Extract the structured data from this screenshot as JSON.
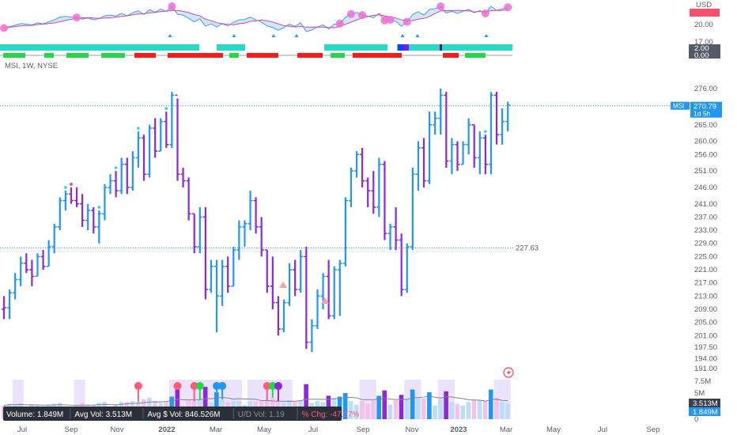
{
  "chart_data": {
    "type": "ohlc",
    "symbol_header": "MSI, 1W, NYSE",
    "symbol": "MSI",
    "interval": "1W",
    "exchange": "NYSE",
    "price_axis": {
      "ticks": [
        "276.00",
        "265.00",
        "260.00",
        "256.00",
        "251.00",
        "246.00",
        "241.00",
        "237.00",
        "233.00",
        "229.00",
        "225.00",
        "221.00",
        "217.00",
        "213.00",
        "209.00",
        "205.00",
        "201.00",
        "197.50",
        "194.00",
        "191.00"
      ],
      "ylim": [
        189,
        280
      ]
    },
    "current_price": {
      "symbol_label": "MSI",
      "value": 270.79,
      "label": "270.79",
      "countdown": "1d 5h"
    },
    "reference_line": {
      "value": 227.63,
      "label": "227.63"
    },
    "time_axis": [
      "Jul",
      "Sep",
      "Nov",
      "2022",
      "Mar",
      "May",
      "Jul",
      "Sep",
      "Nov",
      "2023",
      "Mar",
      "May",
      "Jul",
      "Sep"
    ],
    "bars": [
      {
        "o": 209,
        "h": 213,
        "l": 206,
        "c": 209.5,
        "d": "dn"
      },
      {
        "o": 209.5,
        "h": 215,
        "l": 206,
        "c": 214,
        "d": "up"
      },
      {
        "o": 214,
        "h": 220,
        "l": 212,
        "c": 218,
        "d": "up"
      },
      {
        "o": 218,
        "h": 225,
        "l": 216,
        "c": 223,
        "d": "up"
      },
      {
        "o": 223,
        "h": 226,
        "l": 220,
        "c": 221,
        "d": "dn"
      },
      {
        "o": 221,
        "h": 224,
        "l": 216,
        "c": 219,
        "d": "dn"
      },
      {
        "o": 219,
        "h": 226,
        "l": 219,
        "c": 225,
        "d": "up"
      },
      {
        "o": 225,
        "h": 227,
        "l": 221,
        "c": 222,
        "d": "dn"
      },
      {
        "o": 222,
        "h": 230,
        "l": 222,
        "c": 228,
        "d": "up"
      },
      {
        "o": 228,
        "h": 235,
        "l": 226,
        "c": 234,
        "d": "up"
      },
      {
        "o": 234,
        "h": 243,
        "l": 233,
        "c": 242,
        "d": "up"
      },
      {
        "o": 242,
        "h": 245,
        "l": 239,
        "c": 244,
        "d": "up"
      },
      {
        "o": 244,
        "h": 246,
        "l": 241,
        "c": 242,
        "d": "dn"
      },
      {
        "o": 242,
        "h": 246,
        "l": 240,
        "c": 241,
        "d": "dn"
      },
      {
        "o": 241,
        "h": 244,
        "l": 234,
        "c": 236,
        "d": "dn"
      },
      {
        "o": 236,
        "h": 241,
        "l": 233,
        "c": 239,
        "d": "up"
      },
      {
        "o": 239,
        "h": 240,
        "l": 232,
        "c": 234,
        "d": "dn"
      },
      {
        "o": 234,
        "h": 239,
        "l": 229,
        "c": 238,
        "d": "up"
      },
      {
        "o": 238,
        "h": 247,
        "l": 236,
        "c": 246,
        "d": "up"
      },
      {
        "o": 246,
        "h": 250,
        "l": 244,
        "c": 248,
        "d": "up"
      },
      {
        "o": 248,
        "h": 251,
        "l": 243,
        "c": 245,
        "d": "dn"
      },
      {
        "o": 245,
        "h": 255,
        "l": 244,
        "c": 253,
        "d": "up"
      },
      {
        "o": 253,
        "h": 255,
        "l": 244,
        "c": 246,
        "d": "dn"
      },
      {
        "o": 246,
        "h": 257,
        "l": 245,
        "c": 255,
        "d": "up"
      },
      {
        "o": 255,
        "h": 263,
        "l": 252,
        "c": 261,
        "d": "up"
      },
      {
        "o": 261,
        "h": 262,
        "l": 248,
        "c": 250,
        "d": "dn"
      },
      {
        "o": 250,
        "h": 265,
        "l": 249,
        "c": 264,
        "d": "up"
      },
      {
        "o": 264,
        "h": 267,
        "l": 255,
        "c": 257,
        "d": "dn"
      },
      {
        "o": 257,
        "h": 267,
        "l": 257,
        "c": 266,
        "d": "up"
      },
      {
        "o": 266,
        "h": 269,
        "l": 258,
        "c": 259,
        "d": "dn"
      },
      {
        "o": 259,
        "h": 275,
        "l": 258,
        "c": 274,
        "d": "up"
      },
      {
        "o": 274,
        "h": 273,
        "l": 248,
        "c": 250,
        "d": "dn"
      },
      {
        "o": 250,
        "h": 252,
        "l": 246,
        "c": 248,
        "d": "dn"
      },
      {
        "o": 248,
        "h": 249,
        "l": 236,
        "c": 238,
        "d": "dn"
      },
      {
        "o": 238,
        "h": 238,
        "l": 226,
        "c": 228,
        "d": "dn"
      },
      {
        "o": 228,
        "h": 240,
        "l": 226,
        "c": 237,
        "d": "up"
      },
      {
        "o": 237,
        "h": 240,
        "l": 212,
        "c": 215,
        "d": "dn"
      },
      {
        "o": 215,
        "h": 224,
        "l": 214,
        "c": 222,
        "d": "up"
      },
      {
        "o": 222,
        "h": 224,
        "l": 202,
        "c": 213,
        "d": "up"
      },
      {
        "o": 213,
        "h": 224,
        "l": 210,
        "c": 222,
        "d": "up"
      },
      {
        "o": 222,
        "h": 225,
        "l": 214,
        "c": 216,
        "d": "dn"
      },
      {
        "o": 216,
        "h": 228,
        "l": 216,
        "c": 227,
        "d": "up"
      },
      {
        "o": 227,
        "h": 236,
        "l": 224,
        "c": 234,
        "d": "up"
      },
      {
        "o": 234,
        "h": 236,
        "l": 228,
        "c": 235,
        "d": "up"
      },
      {
        "o": 235,
        "h": 245,
        "l": 233,
        "c": 242,
        "d": "up"
      },
      {
        "o": 242,
        "h": 243,
        "l": 232,
        "c": 234,
        "d": "dn"
      },
      {
        "o": 234,
        "h": 237,
        "l": 225,
        "c": 227,
        "d": "dn"
      },
      {
        "o": 227,
        "h": 227,
        "l": 214,
        "c": 216,
        "d": "dn"
      },
      {
        "o": 216,
        "h": 225,
        "l": 209,
        "c": 211,
        "d": "dn"
      },
      {
        "o": 211,
        "h": 213,
        "l": 201,
        "c": 203,
        "d": "dn"
      },
      {
        "o": 203,
        "h": 212,
        "l": 202,
        "c": 211,
        "d": "up"
      },
      {
        "o": 211,
        "h": 223,
        "l": 210,
        "c": 221,
        "d": "up"
      },
      {
        "o": 221,
        "h": 224,
        "l": 213,
        "c": 215,
        "d": "dn"
      },
      {
        "o": 215,
        "h": 227,
        "l": 214,
        "c": 225,
        "d": "up"
      },
      {
        "o": 225,
        "h": 228,
        "l": 197,
        "c": 199,
        "d": "dn"
      },
      {
        "o": 199,
        "h": 206,
        "l": 196,
        "c": 204,
        "d": "up"
      },
      {
        "o": 204,
        "h": 215,
        "l": 203,
        "c": 213,
        "d": "up"
      },
      {
        "o": 213,
        "h": 220,
        "l": 209,
        "c": 219,
        "d": "up"
      },
      {
        "o": 219,
        "h": 224,
        "l": 206,
        "c": 207,
        "d": "dn"
      },
      {
        "o": 207,
        "h": 222,
        "l": 206,
        "c": 221,
        "d": "up"
      },
      {
        "o": 221,
        "h": 224,
        "l": 207,
        "c": 223,
        "d": "up"
      },
      {
        "o": 223,
        "h": 243,
        "l": 222,
        "c": 242,
        "d": "up"
      },
      {
        "o": 242,
        "h": 252,
        "l": 240,
        "c": 251,
        "d": "up"
      },
      {
        "o": 251,
        "h": 257,
        "l": 249,
        "c": 256,
        "d": "up"
      },
      {
        "o": 256,
        "h": 258,
        "l": 246,
        "c": 248,
        "d": "dn"
      },
      {
        "o": 248,
        "h": 249,
        "l": 240,
        "c": 245,
        "d": "dn"
      },
      {
        "o": 245,
        "h": 251,
        "l": 238,
        "c": 240,
        "d": "dn"
      },
      {
        "o": 240,
        "h": 255,
        "l": 237,
        "c": 253,
        "d": "up"
      },
      {
        "o": 253,
        "h": 254,
        "l": 230,
        "c": 232,
        "d": "dn"
      },
      {
        "o": 232,
        "h": 235,
        "l": 227,
        "c": 234,
        "d": "up"
      },
      {
        "o": 234,
        "h": 240,
        "l": 227,
        "c": 230,
        "d": "dn"
      },
      {
        "o": 230,
        "h": 232,
        "l": 213,
        "c": 215,
        "d": "dn"
      },
      {
        "o": 215,
        "h": 229,
        "l": 214,
        "c": 228,
        "d": "up"
      },
      {
        "o": 228,
        "h": 252,
        "l": 227,
        "c": 250,
        "d": "up"
      },
      {
        "o": 250,
        "h": 260,
        "l": 245,
        "c": 258,
        "d": "up"
      },
      {
        "o": 258,
        "h": 261,
        "l": 246,
        "c": 248,
        "d": "dn"
      },
      {
        "o": 248,
        "h": 269,
        "l": 247,
        "c": 265,
        "d": "up"
      },
      {
        "o": 265,
        "h": 269,
        "l": 262,
        "c": 267,
        "d": "up"
      },
      {
        "o": 267,
        "h": 276,
        "l": 262,
        "c": 274,
        "d": "up"
      },
      {
        "o": 274,
        "h": 275,
        "l": 252,
        "c": 254,
        "d": "dn"
      },
      {
        "o": 254,
        "h": 261,
        "l": 250,
        "c": 259,
        "d": "up"
      },
      {
        "o": 259,
        "h": 260,
        "l": 251,
        "c": 253,
        "d": "dn"
      },
      {
        "o": 253,
        "h": 260,
        "l": 253,
        "c": 259,
        "d": "up"
      },
      {
        "o": 259,
        "h": 267,
        "l": 256,
        "c": 265,
        "d": "up"
      },
      {
        "o": 265,
        "h": 265,
        "l": 252,
        "c": 255,
        "d": "dn"
      },
      {
        "o": 255,
        "h": 263,
        "l": 250,
        "c": 261,
        "d": "up"
      },
      {
        "o": 261,
        "h": 262,
        "l": 250,
        "c": 253,
        "d": "dn"
      },
      {
        "o": 253,
        "h": 275,
        "l": 250,
        "c": 274,
        "d": "up"
      },
      {
        "o": 274,
        "h": 275,
        "l": 259,
        "c": 262,
        "d": "dn"
      },
      {
        "o": 262,
        "h": 270,
        "l": 259,
        "c": 266,
        "d": "up"
      },
      {
        "o": 266,
        "h": 272,
        "l": 263,
        "c": 271,
        "d": "up"
      }
    ],
    "volume_axis": {
      "ticks": [
        "7.5M",
        "5M",
        "0"
      ],
      "ylim": [
        0,
        8
      ]
    },
    "avg_volume_label": "3.513M",
    "volume_label": "1.849M",
    "volume_stats": [
      {
        "label": "Volume:",
        "value": "1.849M",
        "color": "#ffffff"
      },
      {
        "label": "Avg Vol:",
        "value": "3.513M",
        "color": "#ffffff"
      },
      {
        "label": "Avg $ Vol:",
        "value": "846.526M",
        "color": "#ffffff"
      },
      {
        "label": "U/D Vol:",
        "value": "1.19",
        "color": "#8a8f99"
      },
      {
        "label": "% Chg:",
        "value": "-47.37%",
        "color": "#ff5b7b"
      }
    ],
    "indicator": {
      "axis_ticks": [
        "20.00",
        "17.00"
      ],
      "axis_unit": "USD",
      "box_values": [
        "2.00",
        "0.00"
      ]
    }
  },
  "colors": {
    "up": "#2196f3",
    "down": "#8c28d9",
    "grid": "#f0f3fa",
    "accent_price": "#2196f3",
    "cyan_band": "#2ad8c6",
    "green": "#23d847",
    "red": "#ff1a1a",
    "lavender": "#e2d6fb",
    "magenta": "#f26bd8"
  }
}
